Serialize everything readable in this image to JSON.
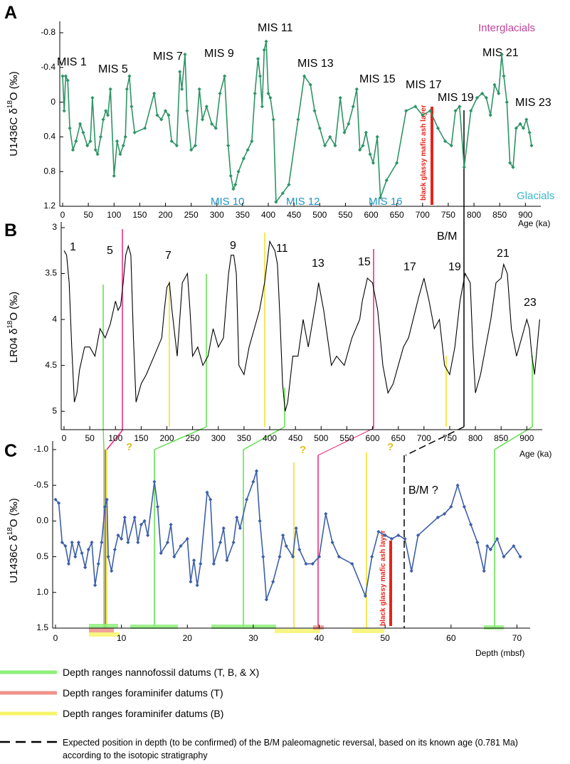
{
  "chart_data": [
    {
      "type": "line",
      "panel": "A",
      "y_label": [
        "U1436C  δ",
        "18",
        "O (‰)"
      ],
      "x_label": "Age (ka)",
      "color": "#2e9466",
      "markers": true,
      "y_inverted": true,
      "xlim": [
        0,
        930
      ],
      "xticks": [
        0,
        50,
        100,
        150,
        200,
        250,
        300,
        350,
        400,
        450,
        500,
        550,
        600,
        650,
        700,
        750,
        800,
        850,
        900
      ],
      "ylim": [
        -0.8,
        1.2
      ],
      "yticks": [
        -0.8,
        -0.4,
        0,
        0.4,
        0.8,
        1.2
      ],
      "annotations": [
        "MIS 1",
        "MIS 5",
        "MIS 7",
        "MIS 9",
        "MIS 11",
        "MIS 13",
        "MIS 15",
        "MIS 17",
        "MIS 19",
        "MIS 21",
        "MIS 23",
        "Interglacials",
        "MIS 10",
        "MIS 12",
        "MIS 16",
        "Glacials",
        "black glassy mafic  ash  layer"
      ],
      "x": [
        0,
        3,
        6,
        10,
        14,
        20,
        26,
        34,
        40,
        48,
        54,
        58,
        64,
        68,
        74,
        79,
        84,
        88,
        93,
        100,
        106,
        112,
        118,
        122,
        125,
        130,
        134,
        140,
        160,
        178,
        184,
        192,
        200,
        206,
        212,
        222,
        228,
        232,
        238,
        242,
        250,
        258,
        266,
        272,
        280,
        290,
        298,
        306,
        315,
        322,
        327,
        332,
        336,
        342,
        352,
        360,
        368,
        374,
        380,
        384,
        388,
        392,
        396,
        400,
        404,
        410,
        415,
        428,
        440,
        458,
        470,
        482,
        490,
        500,
        510,
        520,
        530,
        540,
        548,
        556,
        565,
        572,
        578,
        584,
        590,
        598,
        604,
        612,
        618,
        630,
        650,
        668,
        686,
        700,
        715,
        730,
        744,
        756,
        764,
        772,
        781,
        794,
        806,
        816,
        824,
        832,
        840,
        848,
        854,
        858,
        864,
        870,
        876,
        882,
        890,
        896,
        902,
        908,
        912
      ],
      "values": [
        -0.3,
        0.1,
        -0.3,
        -0.25,
        0.3,
        0.55,
        0.45,
        0.25,
        0.35,
        0.5,
        0.45,
        -0.05,
        0.55,
        0.6,
        0.4,
        0.2,
        0.1,
        0.15,
        -0.15,
        0.85,
        0.45,
        0.6,
        0.5,
        0.4,
        -0.15,
        -0.3,
        0.05,
        0.35,
        0.3,
        -0.1,
        0.15,
        0.2,
        0.1,
        0.15,
        0.45,
        0.5,
        -0.35,
        -0.15,
        -0.55,
        0.1,
        0.55,
        0.5,
        -0.15,
        0.2,
        0.05,
        0.25,
        0.3,
        -0.1,
        -0.3,
        0.5,
        0.85,
        1.0,
        0.95,
        0.8,
        0.65,
        0.55,
        0.45,
        -0.1,
        -0.5,
        -0.3,
        0.05,
        -0.6,
        -0.7,
        -0.1,
        -0.05,
        0.2,
        1.15,
        1.05,
        0.95,
        0.2,
        -0.3,
        -0.2,
        0.1,
        0.3,
        0.5,
        0.4,
        0.5,
        -0.05,
        0.35,
        0.25,
        0.05,
        -0.15,
        0.55,
        0.5,
        0.35,
        0.6,
        0.7,
        0.4,
        1.1,
        0.9,
        0.7,
        0.1,
        0.05,
        0.15,
        0.1,
        0.3,
        0.45,
        0.5,
        0.1,
        0.05,
        0.75,
        0.1,
        -0.05,
        -0.1,
        -0.05,
        0.15,
        -0.2,
        -0.1,
        -0.55,
        -0.3,
        0.0,
        0.7,
        0.75,
        0.3,
        0.25,
        0.3,
        0.2,
        0.35,
        0.5
      ]
    },
    {
      "type": "line",
      "panel": "B",
      "y_label": [
        "LR04  δ",
        "18",
        "O (‰)"
      ],
      "x_label": "Age (ka)",
      "color": "#000000",
      "markers": false,
      "y_inverted": true,
      "xlim": [
        0,
        930
      ],
      "xticks": [
        0,
        50,
        100,
        150,
        200,
        250,
        300,
        350,
        400,
        450,
        500,
        550,
        600,
        650,
        700,
        750,
        800,
        850,
        900
      ],
      "ylim": [
        3,
        5.2
      ],
      "yticks": [
        3,
        3.5,
        4,
        4.5,
        5
      ],
      "annotations": [
        "1",
        "5",
        "7",
        "9",
        "11",
        "13",
        "15",
        "17",
        "19",
        "21",
        "23",
        "B/M"
      ],
      "x": [
        0,
        5,
        10,
        15,
        20,
        25,
        30,
        40,
        50,
        60,
        70,
        80,
        90,
        100,
        105,
        110,
        115,
        120,
        125,
        130,
        135,
        140,
        150,
        160,
        175,
        190,
        195,
        200,
        205,
        210,
        220,
        230,
        240,
        245,
        250,
        260,
        270,
        280,
        290,
        300,
        310,
        320,
        325,
        330,
        335,
        340,
        350,
        360,
        370,
        380,
        390,
        400,
        405,
        410,
        415,
        420,
        425,
        430,
        435,
        445,
        455,
        465,
        475,
        490,
        495,
        505,
        520,
        530,
        545,
        560,
        575,
        580,
        590,
        600,
        610,
        620,
        630,
        640,
        650,
        660,
        670,
        690,
        700,
        710,
        720,
        730,
        740,
        750,
        760,
        770,
        780,
        790,
        795,
        800,
        810,
        820,
        830,
        840,
        850,
        855,
        862,
        870,
        880,
        890,
        900,
        905,
        910,
        915,
        925
      ],
      "values": [
        3.25,
        3.3,
        3.6,
        4.3,
        4.9,
        4.8,
        4.55,
        4.3,
        4.3,
        4.4,
        4.1,
        4.2,
        4.05,
        3.8,
        3.9,
        3.85,
        3.6,
        3.3,
        3.2,
        3.3,
        4.2,
        4.9,
        4.7,
        4.6,
        4.4,
        4.2,
        3.9,
        3.65,
        3.6,
        3.9,
        4.4,
        3.6,
        3.5,
        3.9,
        4.4,
        4.3,
        4.5,
        4.4,
        4.1,
        4.3,
        4.2,
        3.5,
        3.3,
        3.3,
        3.5,
        4.5,
        4.6,
        4.3,
        4.1,
        3.9,
        3.6,
        3.15,
        3.2,
        3.25,
        3.4,
        4.0,
        4.7,
        5.0,
        4.9,
        4.4,
        4.4,
        4.0,
        4.3,
        3.8,
        3.6,
        3.9,
        4.5,
        4.4,
        4.5,
        4.2,
        4.0,
        3.8,
        3.55,
        3.6,
        3.9,
        4.5,
        4.8,
        4.7,
        4.5,
        4.3,
        4.2,
        3.75,
        3.55,
        3.8,
        4.1,
        4.0,
        4.5,
        4.6,
        4.3,
        3.8,
        3.5,
        3.6,
        4.3,
        4.8,
        4.6,
        4.3,
        4.0,
        3.6,
        3.55,
        3.4,
        3.5,
        4.1,
        4.4,
        4.2,
        4.0,
        4.1,
        4.4,
        4.6,
        4.0
      ]
    },
    {
      "type": "line",
      "panel": "C",
      "y_label": [
        "U1436C  δ",
        "18",
        "O (‰)"
      ],
      "x_label": "Depth (mbsf)",
      "color": "#3d5fa8",
      "markers": true,
      "y_inverted": true,
      "xlim": [
        0,
        72
      ],
      "xticks": [
        0,
        10,
        20,
        30,
        40,
        50,
        60,
        70
      ],
      "ylim": [
        -1,
        1.5
      ],
      "yticks": [
        {
          "value": -1,
          "label": "-1.0"
        },
        -0.5,
        {
          "value": 0,
          "label": "0.0"
        },
        0.5,
        {
          "value": 1,
          "label": "1.0"
        },
        1.5
      ],
      "annotations": [
        "B/M ?",
        "?",
        "?",
        "?",
        "black glassy mafic  ash  layer"
      ],
      "x": [
        0,
        0.5,
        1,
        1.5,
        2,
        2.5,
        3,
        3.5,
        4,
        4.5,
        5,
        5.5,
        6,
        6.5,
        7,
        7.5,
        7.8,
        8,
        8.5,
        9,
        9.5,
        10,
        10.5,
        11,
        12,
        12.5,
        13,
        13.5,
        14,
        15,
        15.5,
        16,
        17,
        17.5,
        18,
        19,
        20,
        20.5,
        21,
        21.5,
        22,
        23,
        23.5,
        24,
        25,
        25.5,
        26,
        27,
        27.5,
        28,
        29,
        30,
        30.5,
        31,
        31.5,
        32,
        33,
        34,
        34.5,
        35,
        36,
        36.5,
        37,
        38,
        39,
        40,
        41,
        42,
        43,
        45,
        47,
        48,
        49,
        50,
        51,
        52,
        53,
        54,
        55,
        58,
        59,
        60,
        61,
        62,
        63,
        64,
        65,
        65.5,
        66,
        67,
        68,
        69.5,
        70.5
      ],
      "values": [
        -0.3,
        -0.25,
        0.3,
        0.35,
        0.6,
        0.3,
        0.5,
        0.3,
        0.45,
        0.65,
        0.4,
        0.3,
        0.9,
        0.6,
        0.3,
        -0.2,
        -0.3,
        0.5,
        0.7,
        0.4,
        0.2,
        0.25,
        -0.05,
        0.3,
        -0.05,
        0.3,
        0.05,
        0.0,
        0.2,
        -0.55,
        -0.2,
        0.45,
        0.3,
        0.05,
        0.5,
        0.35,
        0.25,
        0.85,
        0.55,
        0.9,
        0.6,
        -0.4,
        -0.3,
        0.6,
        0.3,
        0.1,
        0.55,
        0.3,
        -0.05,
        0.1,
        -0.3,
        -0.55,
        -0.7,
        0.0,
        0.5,
        1.1,
        0.85,
        0.5,
        0.2,
        0.35,
        0.5,
        0.1,
        0.4,
        0.6,
        0.6,
        0.5,
        -0.1,
        0.3,
        0.5,
        0.6,
        1.05,
        0.5,
        0.15,
        0.2,
        0.25,
        0.2,
        0.25,
        0.7,
        0.2,
        -0.05,
        -0.1,
        -0.2,
        -0.5,
        -0.2,
        0.05,
        0.3,
        0.7,
        0.35,
        0.4,
        0.25,
        0.5,
        0.35,
        0.5
      ]
    }
  ],
  "legend": {
    "items": [
      {
        "label": "Depth ranges nannofossil datums (T, B, & X)",
        "color": "#8ef07a"
      },
      {
        "label": "Depth ranges foraminifer datums (T)",
        "color": "#f0938a"
      },
      {
        "label": "Depth ranges foraminifer datums (B)",
        "color": "#f6f56a"
      },
      {
        "label": [
          "Expected position in depth (to be confirmed) of the B/M paleomagnetic reversal, based on its known age (0.781 Ma)",
          "according to the isotopic stratigraphy"
        ],
        "color": "#000000"
      }
    ]
  }
}
